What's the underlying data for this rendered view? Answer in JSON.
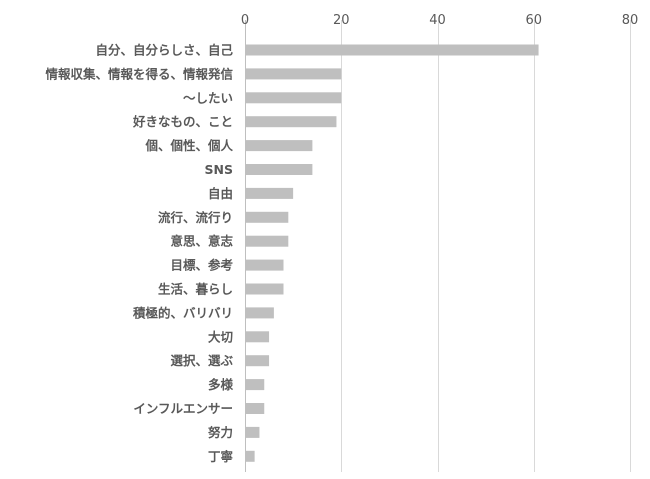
{
  "chart_data": {
    "type": "bar",
    "orientation": "horizontal",
    "title": "",
    "xlabel": "",
    "ylabel": "",
    "xlim": [
      0,
      80
    ],
    "xticks": [
      0,
      20,
      40,
      60,
      80
    ],
    "tick_position": "top",
    "grid": true,
    "legend": "none",
    "bar_color": "#bfbfbf",
    "categories": [
      "自分、自分らしさ、自己",
      "情報収集、情報を得る、情報発信",
      "〜したい",
      "好きなもの、こと",
      "個、個性、個人",
      "SNS",
      "自由",
      "流行、流行り",
      "意思、意志",
      "目標、参考",
      "生活、暮らし",
      "積極的、バリバリ",
      "大切",
      "選択、選ぶ",
      "多様",
      "インフルエンサー",
      "努力",
      "丁寧"
    ],
    "values": [
      61,
      20,
      20,
      19,
      14,
      14,
      10,
      9,
      9,
      8,
      8,
      6,
      5,
      5,
      4,
      4,
      3,
      2
    ]
  }
}
